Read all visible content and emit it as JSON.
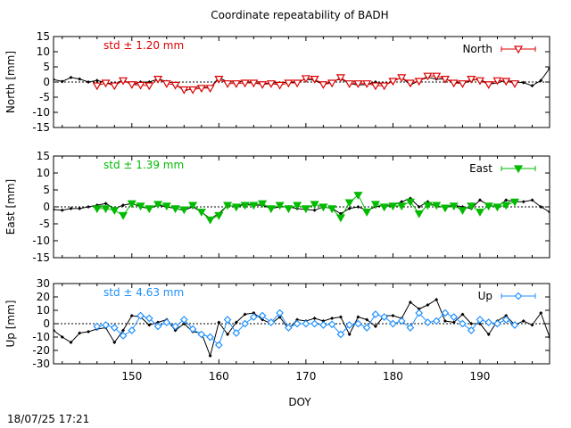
{
  "title": "Coordinate repeatability of BADH",
  "timestamp": "18/07/25 17:21",
  "chart_data": [
    {
      "type": "line",
      "ylabel": "North [mm]",
      "ylim": [
        -15,
        15
      ],
      "yticks": [
        15,
        10,
        5,
        0,
        -5,
        -10,
        -15
      ],
      "xlim": [
        141,
        198
      ],
      "std_label": "std ± 1.20 mm",
      "color": "#dd0000",
      "marker": "triangle-down-open",
      "series": [
        {
          "name": "North",
          "x": [
            146,
            147,
            148,
            149,
            150,
            151,
            152,
            153,
            154,
            155,
            156,
            157,
            158,
            159,
            160,
            161,
            162,
            163,
            164,
            165,
            166,
            167,
            168,
            169,
            170,
            171,
            172,
            173,
            174,
            175,
            176,
            177,
            178,
            179,
            180,
            181,
            182,
            183,
            184,
            185,
            186,
            187,
            188,
            189,
            190,
            191,
            192,
            193,
            194
          ],
          "values": [
            -1.2,
            -0.3,
            -1.2,
            0.5,
            -0.8,
            -1.0,
            -1.2,
            1.0,
            -0.5,
            -1.0,
            -2.5,
            -2.5,
            -2.0,
            -2.0,
            1.0,
            -0.5,
            -0.5,
            -0.3,
            -0.3,
            -0.8,
            -0.5,
            -1.0,
            -0.3,
            -0.3,
            1.2,
            1.0,
            -0.8,
            -0.3,
            1.5,
            -0.5,
            -0.5,
            -0.5,
            -1.2,
            -1.2,
            0.3,
            1.5,
            -0.3,
            0.3,
            2.0,
            2.0,
            1.0,
            -0.3,
            -0.5,
            1.0,
            0.5,
            -0.8,
            0.5,
            0.3,
            -0.5
          ]
        }
      ],
      "reference": {
        "x": [
          141,
          142,
          143,
          144,
          145,
          146,
          147,
          148,
          149,
          150,
          151,
          152,
          153,
          154,
          155,
          156,
          157,
          158,
          159,
          160,
          161,
          162,
          163,
          164,
          165,
          166,
          167,
          168,
          169,
          170,
          171,
          172,
          173,
          174,
          175,
          176,
          177,
          178,
          179,
          180,
          181,
          182,
          183,
          184,
          185,
          186,
          187,
          188,
          189,
          190,
          191,
          192,
          193,
          194,
          195,
          196,
          197,
          198
        ],
        "values": [
          0.8,
          0.2,
          1.5,
          1.0,
          0.0,
          0.5,
          -0.2,
          -0.8,
          0.8,
          -1.0,
          0.0,
          0.0,
          1.0,
          0.2,
          -0.5,
          -3.0,
          -2.0,
          -1.5,
          -2.0,
          1.5,
          0.0,
          0.0,
          0.3,
          -0.3,
          -0.5,
          -0.3,
          -0.3,
          0.0,
          0.0,
          1.0,
          0.5,
          -0.8,
          0.2,
          1.0,
          -0.5,
          -1.0,
          -0.8,
          0.0,
          -1.0,
          0.2,
          1.5,
          -1.0,
          0.5,
          1.5,
          1.0,
          1.0,
          0.0,
          -0.5,
          0.5,
          1.0,
          -0.8,
          -0.2,
          0.5,
          0.0,
          -0.2,
          -1.2,
          0.5,
          4.5
        ]
      }
    },
    {
      "type": "line",
      "ylabel": "East [mm]",
      "ylim": [
        -15,
        15
      ],
      "yticks": [
        15,
        10,
        5,
        0,
        -5,
        -10,
        -15
      ],
      "xlim": [
        141,
        198
      ],
      "std_label": "std ± 1.39 mm",
      "color": "#00bb00",
      "marker": "triangle-down-filled",
      "series": [
        {
          "name": "East",
          "x": [
            146,
            147,
            148,
            149,
            150,
            151,
            152,
            153,
            154,
            155,
            156,
            157,
            158,
            159,
            160,
            161,
            162,
            163,
            164,
            165,
            166,
            167,
            168,
            169,
            170,
            171,
            172,
            173,
            174,
            175,
            176,
            177,
            178,
            179,
            180,
            181,
            182,
            183,
            184,
            185,
            186,
            187,
            188,
            189,
            190,
            191,
            192,
            193,
            194
          ],
          "values": [
            -0.5,
            -0.5,
            -1.0,
            -2.5,
            1.0,
            0.3,
            -0.5,
            0.8,
            0.3,
            -0.5,
            -0.8,
            0.5,
            -1.5,
            -3.8,
            -2.5,
            0.5,
            0.0,
            0.5,
            0.5,
            1.0,
            -0.5,
            0.5,
            -0.5,
            0.5,
            -0.5,
            0.8,
            0.0,
            -0.5,
            -3.2,
            1.3,
            3.5,
            -1.5,
            0.8,
            0.0,
            0.3,
            0.3,
            1.5,
            -2.0,
            0.5,
            0.5,
            -0.3,
            0.3,
            -1.0,
            0.3,
            -1.5,
            0.3,
            0.0,
            0.5,
            1.5
          ]
        }
      ],
      "reference": {
        "x": [
          141,
          142,
          143,
          144,
          145,
          146,
          147,
          148,
          149,
          150,
          151,
          152,
          153,
          154,
          155,
          156,
          157,
          158,
          159,
          160,
          161,
          162,
          163,
          164,
          165,
          166,
          167,
          168,
          169,
          170,
          171,
          172,
          173,
          174,
          175,
          176,
          177,
          178,
          179,
          180,
          181,
          182,
          183,
          184,
          185,
          186,
          187,
          188,
          189,
          190,
          191,
          192,
          193,
          194,
          195,
          196,
          197,
          198
        ],
        "values": [
          -0.8,
          -1.0,
          -0.5,
          -0.5,
          0.0,
          0.5,
          1.0,
          -0.5,
          0.5,
          1.0,
          0.0,
          -0.5,
          0.5,
          0.0,
          -0.5,
          -1.0,
          0.0,
          -1.5,
          -3.5,
          -2.0,
          0.5,
          0.0,
          1.0,
          0.5,
          0.5,
          -0.5,
          0.0,
          0.0,
          -0.5,
          -0.8,
          -1.0,
          0.0,
          -0.5,
          -2.0,
          -0.5,
          0.0,
          -1.0,
          0.0,
          0.5,
          0.5,
          1.5,
          2.5,
          0.0,
          1.5,
          0.0,
          0.0,
          0.5,
          0.0,
          -0.5,
          2.0,
          0.5,
          0.0,
          2.0,
          1.5,
          1.5,
          2.0,
          0.0,
          -1.5
        ]
      }
    },
    {
      "type": "line",
      "ylabel": "Up [mm]",
      "ylim": [
        -30,
        30
      ],
      "yticks": [
        30,
        20,
        10,
        0,
        -10,
        -20,
        -30
      ],
      "xlim": [
        141,
        198
      ],
      "std_label": "std ± 4.63 mm",
      "color": "#1e90ff",
      "marker": "diamond-open",
      "series": [
        {
          "name": "Up",
          "x": [
            146,
            147,
            148,
            149,
            150,
            151,
            152,
            153,
            154,
            155,
            156,
            157,
            158,
            159,
            160,
            161,
            162,
            163,
            164,
            165,
            166,
            167,
            168,
            169,
            170,
            171,
            172,
            173,
            174,
            175,
            176,
            177,
            178,
            179,
            180,
            181,
            182,
            183,
            184,
            185,
            186,
            187,
            188,
            189,
            190,
            191,
            192,
            193,
            194
          ],
          "values": [
            -2.0,
            -1.0,
            -3.0,
            -9.0,
            -5.0,
            6.0,
            4.0,
            -2.0,
            1.0,
            -2.0,
            3.0,
            -4.0,
            -8.0,
            -10.0,
            -16.0,
            3.0,
            -7.0,
            0.0,
            5.0,
            6.0,
            1.0,
            8.0,
            -3.0,
            0.0,
            0.0,
            0.0,
            -1.0,
            -0.5,
            -8.0,
            -1.0,
            0.0,
            -3.0,
            7.0,
            5.0,
            0.0,
            2.0,
            -3.0,
            8.0,
            1.0,
            2.0,
            8.0,
            5.0,
            0.0,
            -5.0,
            3.0,
            1.0,
            0.0,
            3.0,
            -1.0
          ]
        }
      ],
      "reference": {
        "x": [
          141,
          142,
          143,
          144,
          145,
          146,
          147,
          148,
          149,
          150,
          151,
          152,
          153,
          154,
          155,
          156,
          157,
          158,
          159,
          160,
          161,
          162,
          163,
          164,
          165,
          166,
          167,
          168,
          169,
          170,
          171,
          172,
          173,
          174,
          175,
          176,
          177,
          178,
          179,
          180,
          181,
          182,
          183,
          184,
          185,
          186,
          187,
          188,
          189,
          190,
          191,
          192,
          193,
          194,
          195,
          196,
          197,
          198
        ],
        "values": [
          -5.0,
          -10.0,
          -14.0,
          -7.0,
          -6.0,
          -4.0,
          -3.0,
          -14.0,
          -5.0,
          6.0,
          5.0,
          -1.0,
          1.0,
          3.0,
          -5.0,
          0.0,
          -6.0,
          -7.0,
          -24.0,
          1.0,
          -8.0,
          1.0,
          7.0,
          8.0,
          3.0,
          0.0,
          5.0,
          -4.0,
          3.0,
          2.0,
          4.0,
          2.0,
          4.0,
          5.0,
          -8.0,
          5.0,
          3.0,
          -2.0,
          6.0,
          6.0,
          4.0,
          16.0,
          11.0,
          14.0,
          18.0,
          2.0,
          1.0,
          7.0,
          0.0,
          0.0,
          -8.0,
          2.0,
          6.0,
          -1.0,
          2.0,
          -1.0,
          8.0,
          -10.0
        ]
      }
    }
  ],
  "xaxis": {
    "label": "DOY",
    "ticks": [
      150,
      160,
      170,
      180,
      190
    ]
  },
  "colors": {
    "reference": "#000000",
    "zero_line": "#000000"
  }
}
